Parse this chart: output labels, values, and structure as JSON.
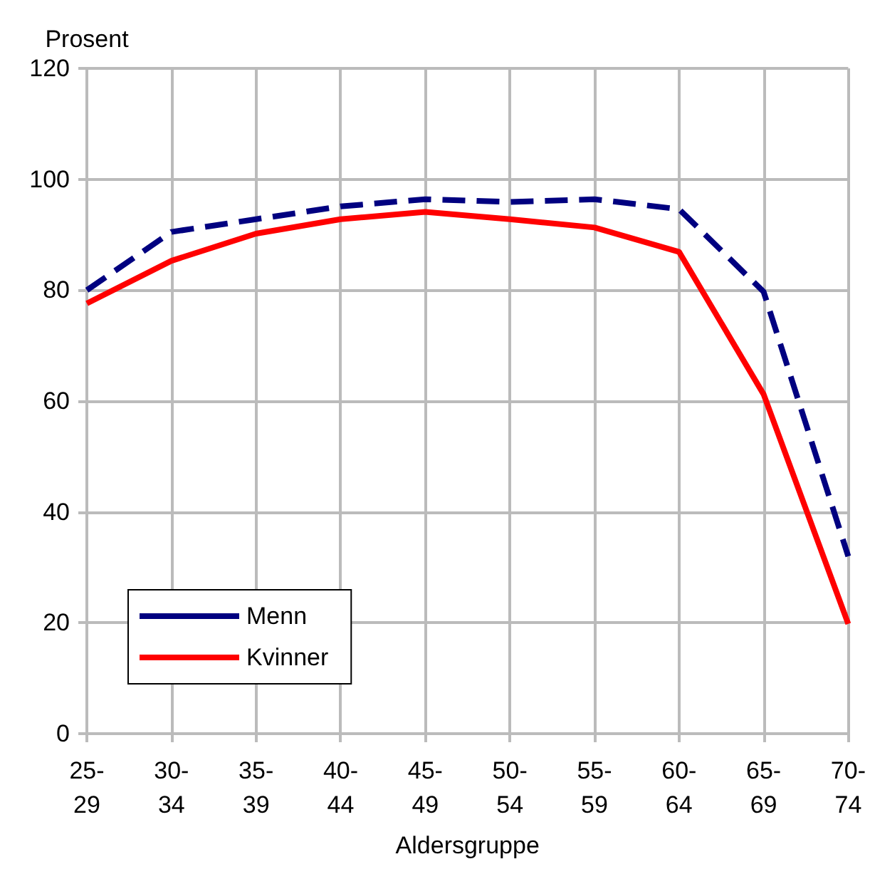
{
  "chart_data": {
    "type": "line",
    "ylabel": "Prosent",
    "xlabel": "Aldersgruppe",
    "categories": [
      "25-29",
      "30-34",
      "35-39",
      "40-44",
      "45-49",
      "50-54",
      "55-59",
      "60-64",
      "65-69",
      "70-74"
    ],
    "series": [
      {
        "name": "Menn",
        "color": "#000080",
        "line_style": "dashed",
        "values": [
          80,
          90.5,
          92.8,
          95.1,
          96.4,
          95.9,
          96.4,
          94.6,
          79.7,
          32
        ]
      },
      {
        "name": "Kvinner",
        "color": "#ff0000",
        "line_style": "solid",
        "values": [
          77.6,
          85.3,
          90.2,
          92.8,
          94.1,
          92.8,
          91.3,
          86.9,
          61.2,
          19.8
        ]
      }
    ],
    "ylim": [
      0,
      120
    ],
    "yticks": [
      0,
      20,
      40,
      60,
      80,
      100,
      120
    ],
    "grid": true,
    "legend": "bottom left",
    "marker": "none"
  }
}
